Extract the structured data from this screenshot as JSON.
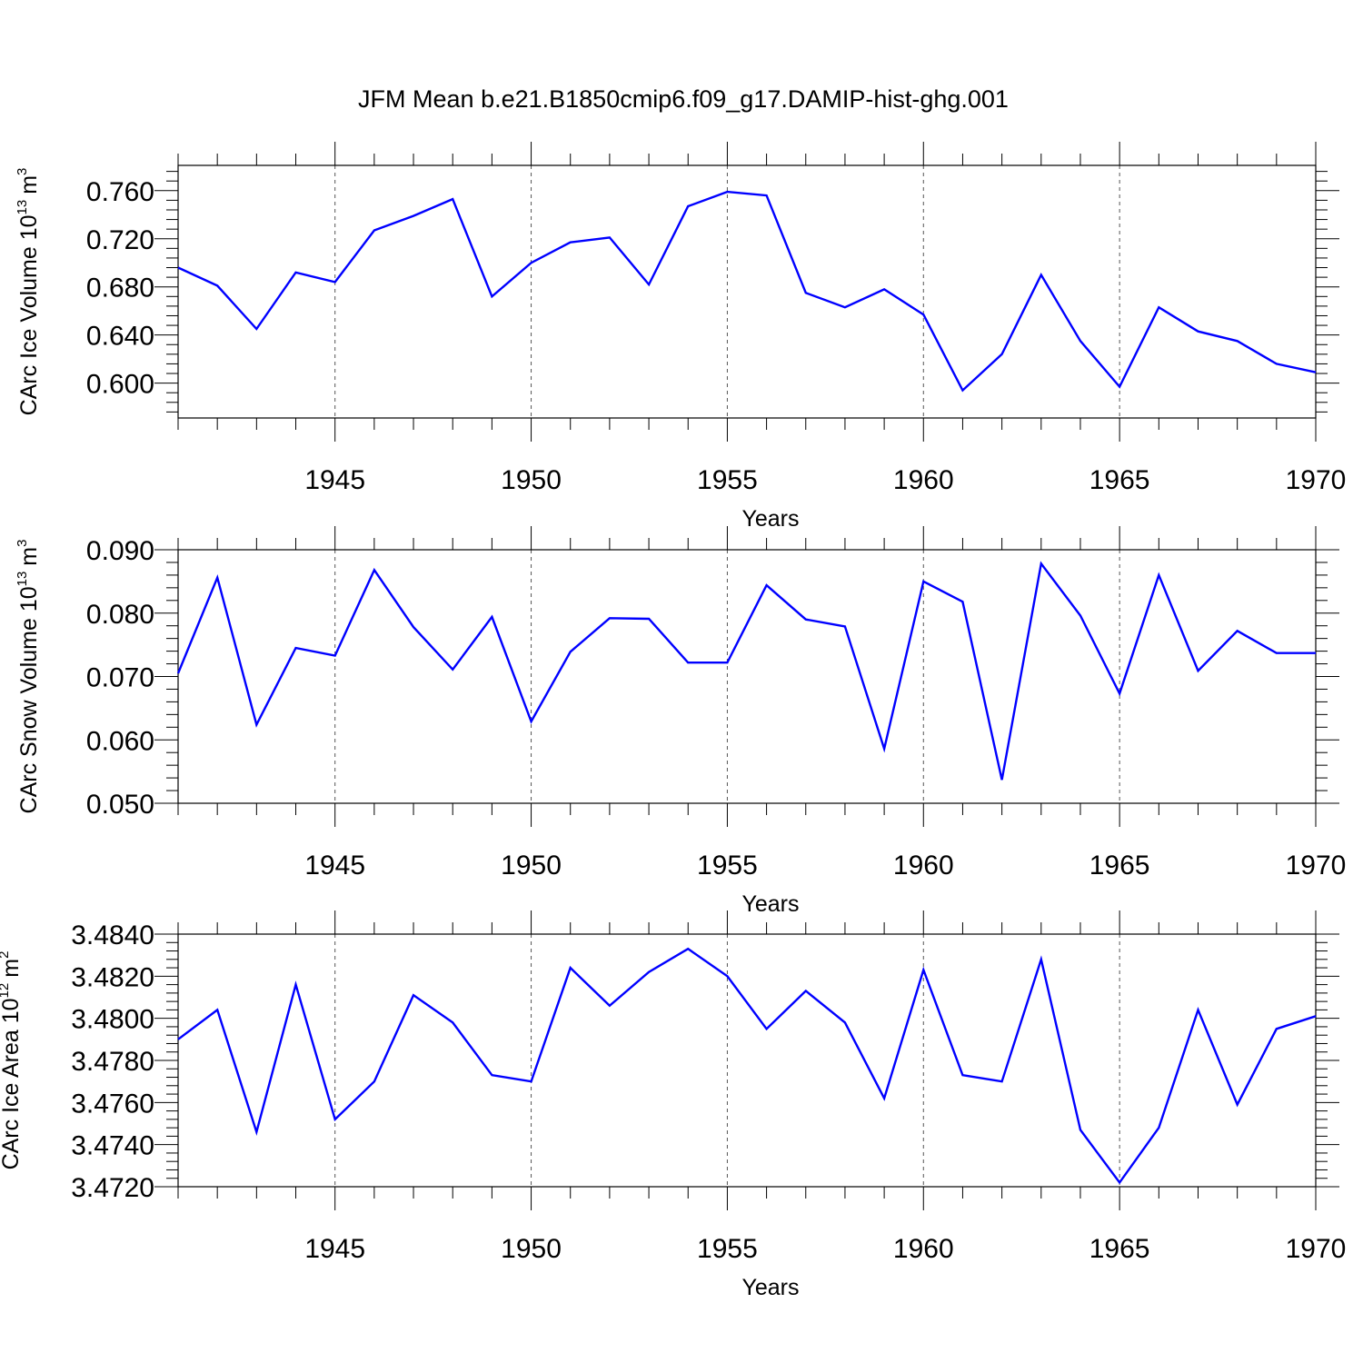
{
  "title": "JFM Mean b.e21.B1850cmip6.f09_g17.DAMIP-hist-ghg.001",
  "colors": {
    "line": "#0000ff",
    "axis": "#000000",
    "grid": "#555555"
  },
  "chart_data": [
    {
      "type": "line",
      "ylabel_main": "CArc Ice Volume 10",
      "ylabel_exp": "13",
      "ylabel_unit": "m",
      "ylabel_unit_exp": "3",
      "xlabel": "Years",
      "xlim": [
        1941,
        1970
      ],
      "ylim": [
        0.571,
        0.781
      ],
      "yticks": [
        0.6,
        0.64,
        0.68,
        0.72,
        0.76
      ],
      "ytick_labels": [
        "0.600",
        "0.640",
        "0.680",
        "0.720",
        "0.760"
      ],
      "xticks": [
        1945,
        1950,
        1955,
        1960,
        1965,
        1970
      ],
      "xtick_labels": [
        "1945",
        "1950",
        "1955",
        "1960",
        "1965",
        "1970"
      ],
      "x": [
        1941,
        1942,
        1943,
        1944,
        1945,
        1946,
        1947,
        1948,
        1949,
        1950,
        1951,
        1952,
        1953,
        1954,
        1955,
        1956,
        1957,
        1958,
        1959,
        1960,
        1961,
        1962,
        1963,
        1964,
        1965,
        1966,
        1967,
        1968,
        1969,
        1970
      ],
      "values": [
        0.696,
        0.681,
        0.645,
        0.692,
        0.684,
        0.727,
        0.739,
        0.753,
        0.672,
        0.7,
        0.717,
        0.721,
        0.682,
        0.747,
        0.759,
        0.756,
        0.675,
        0.663,
        0.678,
        0.657,
        0.594,
        0.624,
        0.69,
        0.635,
        0.597,
        0.663,
        0.643,
        0.635,
        0.616,
        0.609
      ]
    },
    {
      "type": "line",
      "ylabel_main": "CArc Snow Volume 10",
      "ylabel_exp": "13",
      "ylabel_unit": "m",
      "ylabel_unit_exp": "3",
      "xlabel": "Years",
      "xlim": [
        1941,
        1970
      ],
      "ylim": [
        0.05,
        0.09
      ],
      "yticks": [
        0.05,
        0.06,
        0.07,
        0.08,
        0.09
      ],
      "ytick_labels": [
        "0.050",
        "0.060",
        "0.070",
        "0.080",
        "0.090"
      ],
      "xticks": [
        1945,
        1950,
        1955,
        1960,
        1965,
        1970
      ],
      "xtick_labels": [
        "1945",
        "1950",
        "1955",
        "1960",
        "1965",
        "1970"
      ],
      "x": [
        1941,
        1942,
        1943,
        1944,
        1945,
        1946,
        1947,
        1948,
        1949,
        1950,
        1951,
        1952,
        1953,
        1954,
        1955,
        1956,
        1957,
        1958,
        1959,
        1960,
        1961,
        1962,
        1963,
        1964,
        1965,
        1966,
        1967,
        1968,
        1969,
        1970
      ],
      "values": [
        0.0705,
        0.0856,
        0.0624,
        0.0745,
        0.0733,
        0.0868,
        0.0778,
        0.0711,
        0.0794,
        0.0629,
        0.0739,
        0.0792,
        0.0791,
        0.0722,
        0.0722,
        0.0844,
        0.079,
        0.0779,
        0.0586,
        0.085,
        0.0818,
        0.0537,
        0.0878,
        0.0796,
        0.0673,
        0.086,
        0.0709,
        0.0772,
        0.0737,
        0.0737
      ]
    },
    {
      "type": "line",
      "ylabel_main": "CArc Ice Area 10",
      "ylabel_exp": "12",
      "ylabel_unit": "m",
      "ylabel_unit_exp": "2",
      "xlabel": "Years",
      "xlim": [
        1941,
        1970
      ],
      "ylim": [
        3.472,
        3.484
      ],
      "yticks": [
        3.472,
        3.474,
        3.476,
        3.478,
        3.48,
        3.482,
        3.484
      ],
      "ytick_labels": [
        "3.4720",
        "3.4740",
        "3.4760",
        "3.4780",
        "3.4800",
        "3.4820",
        "3.4840"
      ],
      "xticks": [
        1945,
        1950,
        1955,
        1960,
        1965,
        1970
      ],
      "xtick_labels": [
        "1945",
        "1950",
        "1955",
        "1960",
        "1965",
        "1970"
      ],
      "x": [
        1941,
        1942,
        1943,
        1944,
        1945,
        1946,
        1947,
        1948,
        1949,
        1950,
        1951,
        1952,
        1953,
        1954,
        1955,
        1956,
        1957,
        1958,
        1959,
        1960,
        1961,
        1962,
        1963,
        1964,
        1965,
        1966,
        1967,
        1968,
        1969,
        1970
      ],
      "values": [
        3.479,
        3.4804,
        3.4746,
        3.4816,
        3.4752,
        3.477,
        3.4811,
        3.4798,
        3.4773,
        3.477,
        3.4824,
        3.4806,
        3.4822,
        3.4833,
        3.482,
        3.4795,
        3.4813,
        3.4798,
        3.4762,
        3.4823,
        3.4773,
        3.477,
        3.4828,
        3.4747,
        3.4722,
        3.4748,
        3.4804,
        3.4759,
        3.4795,
        3.4801
      ]
    }
  ]
}
